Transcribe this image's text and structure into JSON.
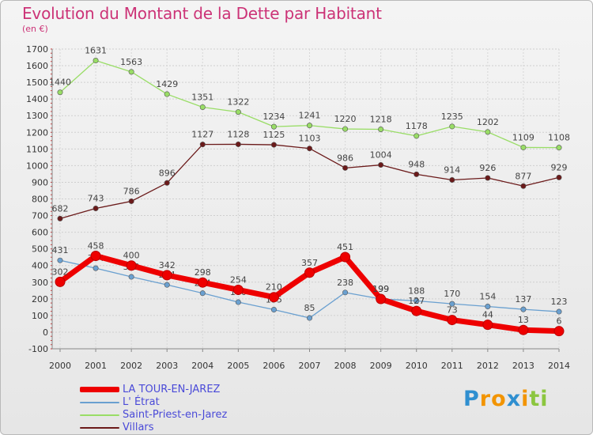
{
  "header": {
    "title": "Evolution du Montant de la Dette par Habitant",
    "unit": "(en €)"
  },
  "chart_data": {
    "type": "line",
    "x": [
      "2000",
      "2001",
      "2002",
      "2003",
      "2004",
      "2005",
      "2006",
      "2007",
      "2008",
      "2009",
      "2010",
      "2011",
      "2012",
      "2013",
      "2014"
    ],
    "ylim": [
      -100,
      1700
    ],
    "yticks": [
      -100,
      0,
      100,
      200,
      300,
      400,
      500,
      600,
      700,
      800,
      900,
      1000,
      1100,
      1200,
      1300,
      1400,
      1500,
      1600,
      1700
    ],
    "grid": true,
    "legend_position": "bottom-left",
    "series": [
      {
        "name": "LA TOUR-EN-JAREZ",
        "color": "#ee0000",
        "emphasis": true,
        "values": [
          302,
          458,
          400,
          342,
          298,
          254,
          210,
          357,
          451,
          199,
          127,
          73,
          44,
          13,
          6
        ]
      },
      {
        "name": "L' Étrat",
        "color": "#6aa0d0",
        "values": [
          431,
          384,
          332,
          284,
          234,
          180,
          135,
          85,
          238,
          199,
          188,
          170,
          154,
          137,
          123
        ]
      },
      {
        "name": "Saint-Priest-en-Jarez",
        "color": "#99dd66",
        "values": [
          1440,
          1631,
          1563,
          1429,
          1351,
          1322,
          1234,
          1241,
          1220,
          1218,
          1178,
          1235,
          1202,
          1109,
          1108
        ]
      },
      {
        "name": "Villars",
        "color": "#6b1a1a",
        "values": [
          682,
          743,
          786,
          896,
          1127,
          1128,
          1125,
          1103,
          986,
          1004,
          948,
          914,
          926,
          877,
          929
        ]
      }
    ]
  },
  "logo": {
    "letters": [
      "P",
      "r",
      "o",
      "x",
      "i",
      "t",
      "i"
    ],
    "colors": [
      "#2f8fd0",
      "#f29400",
      "#f29400",
      "#2f8fd0",
      "#f29400",
      "#8cc63f",
      "#8cc63f"
    ]
  }
}
